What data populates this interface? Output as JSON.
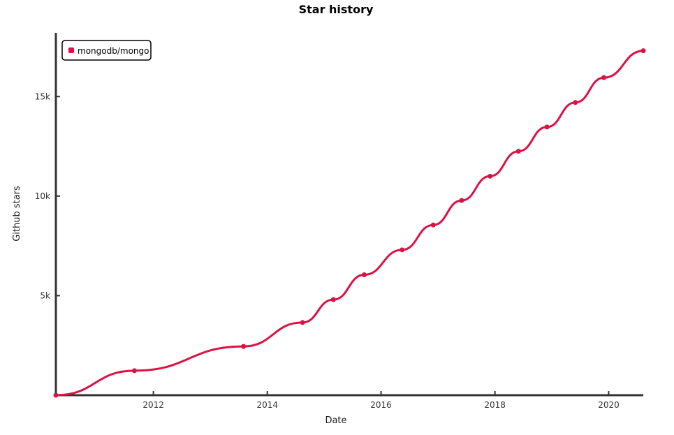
{
  "chart_data": {
    "type": "line",
    "title": "Star history",
    "xlabel": "Date",
    "ylabel": "Github stars",
    "xlim": [
      "2010-04-15",
      "2020-08-10"
    ],
    "ylim": [
      0,
      18200
    ],
    "x_ticks": [
      {
        "date": "2012-01-01",
        "label": "2012"
      },
      {
        "date": "2014-01-01",
        "label": "2014"
      },
      {
        "date": "2016-01-01",
        "label": "2016"
      },
      {
        "date": "2018-01-01",
        "label": "2018"
      },
      {
        "date": "2020-01-01",
        "label": "2020"
      }
    ],
    "y_ticks": [
      {
        "value": 5000,
        "label": "5k"
      },
      {
        "value": 10000,
        "label": "10k"
      },
      {
        "value": 15000,
        "label": "15k"
      }
    ],
    "legend": {
      "position": "top-left"
    },
    "grid": false,
    "series": [
      {
        "name": "mongodb/mongo",
        "color": "#dd1144",
        "points": [
          {
            "date": "2010-04-15",
            "value": 0
          },
          {
            "date": "2011-09-01",
            "value": 1230
          },
          {
            "date": "2013-08-01",
            "value": 2450
          },
          {
            "date": "2014-08-15",
            "value": 3650
          },
          {
            "date": "2015-03-01",
            "value": 4800
          },
          {
            "date": "2015-09-15",
            "value": 6050
          },
          {
            "date": "2016-05-15",
            "value": 7300
          },
          {
            "date": "2016-12-01",
            "value": 8550
          },
          {
            "date": "2017-06-01",
            "value": 9780
          },
          {
            "date": "2017-12-01",
            "value": 11000
          },
          {
            "date": "2018-06-01",
            "value": 12250
          },
          {
            "date": "2018-12-01",
            "value": 13470
          },
          {
            "date": "2019-06-01",
            "value": 14700
          },
          {
            "date": "2019-12-01",
            "value": 15950
          },
          {
            "date": "2020-08-10",
            "value": 17300
          }
        ]
      }
    ]
  }
}
